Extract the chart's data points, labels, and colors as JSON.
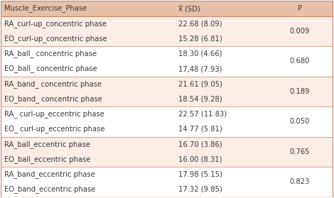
{
  "header": [
    "Muscle_Exercise_Phase",
    "x̅ (SD)",
    "P"
  ],
  "rows": [
    [
      "RA_curl-up_concentric phase",
      "22.68 (8.09)",
      "0.009"
    ],
    [
      "EO_curl-up_concentric phase",
      "15.28 (6.81)",
      ""
    ],
    [
      "RA_ball_ concentric phase",
      "18.30 (4.66)",
      "0.680"
    ],
    [
      "EO_ball_ concentric phase",
      "17,48 (7.93)",
      ""
    ],
    [
      "RA_band_ concentric phase",
      "21.61 (9.05)",
      "0.189"
    ],
    [
      "EO_band_ concentric phase",
      "18.54 (9.28)",
      ""
    ],
    [
      "RA_ curl-up_eccentric phase",
      "22.57 (11.83)",
      "0.050"
    ],
    [
      "EO_ curl-up_eccentric phase",
      "14.77 (5.81)",
      ""
    ],
    [
      "RA_ball_eccentric phase",
      "16.70 (3.86)",
      "0.765"
    ],
    [
      "EO_ball_eccentric phase",
      "16.00 (8.31)",
      ""
    ],
    [
      "RA_band_eccentric phase",
      "17.98 (5.15)",
      "0.823"
    ],
    [
      "EO_band_eccentric phase",
      "17.32 (9.85)",
      ""
    ]
  ],
  "header_bg": "#e8c0a8",
  "row_bg_even": "#f9ede6",
  "row_bg_odd": "#ffffff",
  "border_color": "#c8856a",
  "text_color": "#3a3a3a",
  "font_size": 7.2,
  "header_font_size": 7.2
}
